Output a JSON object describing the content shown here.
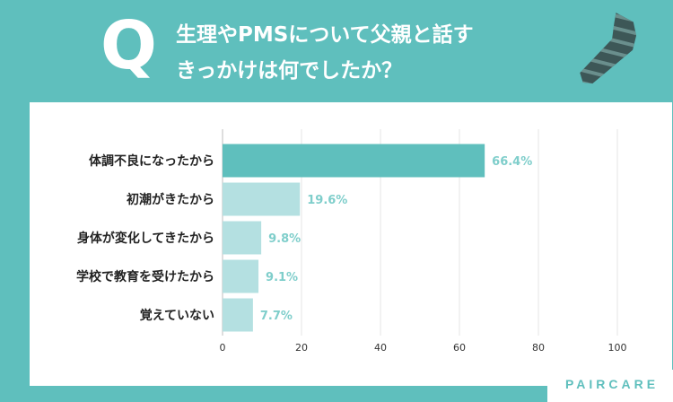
{
  "header": {
    "q_mark": "Q",
    "question_line1": "生理やPMSについて父親と話す",
    "question_line2": "きっかけは何でしたか？"
  },
  "brand": {
    "logo_text": "PAIRCARE"
  },
  "colors": {
    "background": "#5fbfbd",
    "bar_highlight": "#5fbfbd",
    "bar_default": "#b4e0e1",
    "value_text": "#7fcecb",
    "tie_dark": "#3d5757",
    "tie_stripe": "#6a8f8d"
  },
  "chart_data": {
    "type": "bar",
    "orientation": "horizontal",
    "categories": [
      "体調不良になったから",
      "初潮がきたから",
      "身体が変化してきたから",
      "学校で教育を受けたから",
      "覚えていない"
    ],
    "values": [
      66.4,
      19.6,
      9.8,
      9.1,
      7.7
    ],
    "value_labels": [
      "66.4%",
      "19.6%",
      "9.8%",
      "9.1%",
      "7.7%"
    ],
    "highlight_index": 0,
    "x_ticks": [
      0,
      20,
      40,
      60,
      80,
      100
    ],
    "xlim": [
      0,
      100
    ],
    "grid": true
  }
}
